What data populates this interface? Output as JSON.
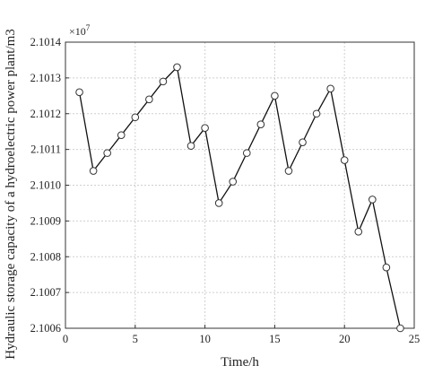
{
  "chart_data": {
    "type": "line",
    "xlabel": "Time/h",
    "ylabel": "Hydraulic storage capacity of a hydroelectric power plant/m3",
    "y_multiplier_label": "×10",
    "y_multiplier_exp": "7",
    "xlim": [
      0,
      25
    ],
    "ylim": [
      2.1006,
      2.1014
    ],
    "x_ticks": [
      0,
      5,
      10,
      15,
      20,
      25
    ],
    "y_ticks": [
      2.1006,
      2.1007,
      2.1008,
      2.1009,
      2.101,
      2.1011,
      2.1012,
      2.1013,
      2.1014
    ],
    "y_tick_labels": [
      "2.1006",
      "2.1007",
      "2.1008",
      "2.1009",
      "2.1010",
      "2.1011",
      "2.1012",
      "2.1013",
      "2.1014"
    ],
    "grid": true,
    "series": [
      {
        "x": [
          1,
          2,
          3,
          4,
          5,
          6,
          7,
          8,
          9,
          10,
          11,
          12,
          13,
          14,
          15,
          16,
          17,
          18,
          19,
          20,
          21,
          22,
          23,
          24
        ],
        "values": [
          2.10126,
          2.10104,
          2.10109,
          2.10114,
          2.10119,
          2.10124,
          2.10129,
          2.10133,
          2.10111,
          2.10116,
          2.10095,
          2.10101,
          2.10109,
          2.10117,
          2.10125,
          2.10104,
          2.10112,
          2.1012,
          2.10127,
          2.10107,
          2.10087,
          2.10096,
          2.10077,
          2.1006
        ]
      }
    ]
  }
}
